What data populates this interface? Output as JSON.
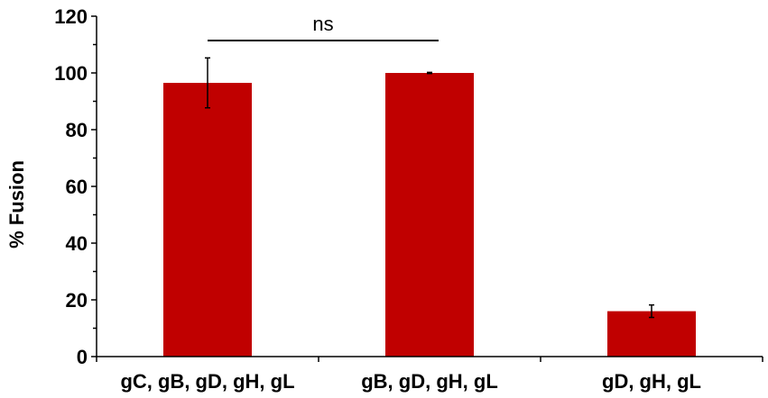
{
  "chart_data": {
    "type": "bar",
    "categories": [
      "gC, gB, gD, gH, gL",
      "gB, gD, gH, gL",
      "gD, gH, gL"
    ],
    "values": [
      96.5,
      100,
      16
    ],
    "errors": [
      8.8,
      0.2,
      2.2
    ],
    "ylabel": "% Fusion",
    "xlabel": "",
    "ylim": [
      0,
      120
    ],
    "yticks": [
      0,
      20,
      40,
      60,
      80,
      100,
      120
    ],
    "grid": false,
    "bar_color": "#c00000",
    "significance": {
      "from": 0,
      "to": 1,
      "label": "ns"
    }
  }
}
